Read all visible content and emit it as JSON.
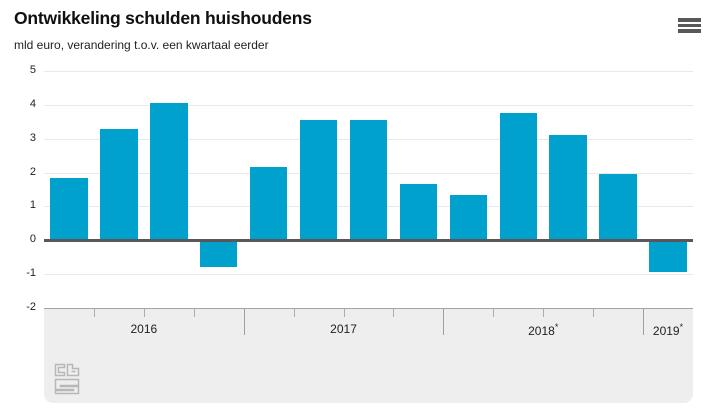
{
  "header": {
    "title": "Ontwikkeling schulden huishoudens",
    "subtitle": "mld euro, verandering t.o.v. een kwartaal eerder",
    "menu_icon": "hamburger-menu-icon"
  },
  "footer": {
    "logo_icon": "cbs-logo"
  },
  "colors": {
    "bar": "#00a1cd",
    "zero_axis": "#58585a",
    "gridline": "#e9e9e9",
    "band_background": "#eeeeee",
    "text": "#1f1f1f"
  },
  "chart_data": {
    "type": "bar",
    "title": "Ontwikkeling schulden huishoudens",
    "subtitle": "mld euro, verandering t.o.v. een kwartaal eerder",
    "xlabel": "",
    "ylabel": "",
    "ylim": [
      -2,
      5
    ],
    "yticks": [
      5,
      4,
      3,
      2,
      1,
      0,
      -1,
      -2
    ],
    "grid": true,
    "legend": false,
    "bar_color": "#00a1cd",
    "groups": [
      {
        "label": "2016",
        "values": [
          1.85,
          3.3,
          4.05,
          -0.8
        ]
      },
      {
        "label": "2017",
        "values": [
          2.15,
          3.55,
          3.55,
          1.65
        ]
      },
      {
        "label": "2018*",
        "values": [
          1.35,
          3.75,
          3.1,
          1.95
        ]
      },
      {
        "label": "2019*",
        "values": [
          -0.95
        ]
      }
    ]
  }
}
